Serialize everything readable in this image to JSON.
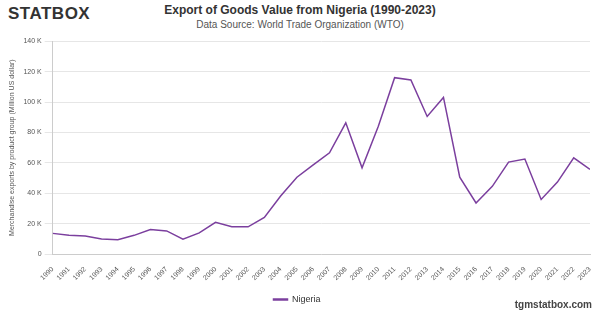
{
  "chart_data": {
    "type": "line",
    "title": "Export of Goods Value from Nigeria (1990-2023)",
    "subtitle": "Data Source: World Trade Organization (WTO)",
    "logo": "STATBOX",
    "footer": "tgmstatbox.com",
    "y_label": "Merchandise exports by product group (Million US dollar)",
    "categories": [
      "1990",
      "1991",
      "1992",
      "1993",
      "1994",
      "1995",
      "1996",
      "1997",
      "1998",
      "1999",
      "2000",
      "2001",
      "2002",
      "2003",
      "2004",
      "2005",
      "2006",
      "2007",
      "2008",
      "2009",
      "2010",
      "2011",
      "2012",
      "2013",
      "2014",
      "2015",
      "2016",
      "2017",
      "2018",
      "2019",
      "2020",
      "2021",
      "2022",
      "2023"
    ],
    "series": [
      {
        "name": "Nigeria",
        "color": "#7b3f9e",
        "values": [
          13600,
          12300,
          11900,
          9900,
          9400,
          12300,
          16100,
          15200,
          9800,
          13900,
          20900,
          17900,
          17900,
          24100,
          38200,
          50500,
          58700,
          66600,
          86300,
          56700,
          84000,
          116000,
          114500,
          90500,
          103000,
          50500,
          33600,
          44500,
          60500,
          62500,
          35900,
          47300,
          63300,
          55700
        ]
      }
    ],
    "ylim": [
      0,
      140000
    ],
    "yticks": [
      0,
      {
        "value": 20000,
        "label": "20 K"
      },
      {
        "value": 40000,
        "label": "40 K"
      },
      {
        "value": 60000,
        "label": "60 K"
      },
      {
        "value": 80000,
        "label": "80 K"
      },
      {
        "value": 100000,
        "label": "100 K"
      },
      {
        "value": 120000,
        "label": "120 K"
      },
      {
        "value": 140000,
        "label": "140 K"
      }
    ],
    "grid": true,
    "legend": "bottom"
  }
}
